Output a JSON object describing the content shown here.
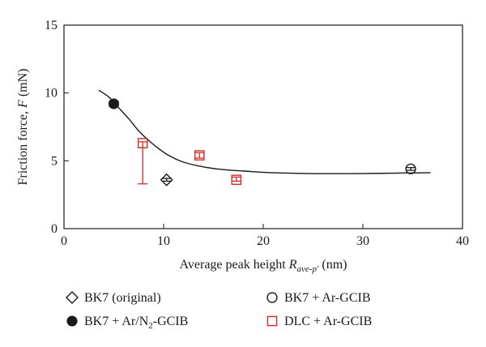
{
  "chart_data": {
    "type": "scatter",
    "xlabel_main": "Average peak height ",
    "xlabel_var": "R",
    "xlabel_sub": "ave-p′",
    "xlabel_unit": "  (nm)",
    "ylabel_main": "Friction force, ",
    "ylabel_var": "F",
    "ylabel_unit": "  (mN)",
    "xlim": [
      0,
      40
    ],
    "ylim": [
      0,
      15
    ],
    "xticks": [
      0,
      10,
      20,
      30,
      40
    ],
    "yticks": [
      0,
      5,
      10,
      15
    ],
    "grid": false,
    "legend_position": "bottom",
    "series": [
      {
        "name": "BK7 (original)",
        "marker": "diamond-open",
        "color": "#1a1a1a",
        "points": [
          {
            "x": 10.3,
            "y": 3.6,
            "err_low": 3.5,
            "err_high": 3.7
          }
        ]
      },
      {
        "name": "BK7 + Ar/N₂-GCIB",
        "marker": "circle-filled",
        "color": "#1a1a1a",
        "points": [
          {
            "x": 5.0,
            "y": 9.2,
            "err_low": 9.0,
            "err_high": 9.4
          }
        ]
      },
      {
        "name": "BK7 + Ar-GCIB",
        "marker": "circle-open",
        "color": "#1a1a1a",
        "points": [
          {
            "x": 34.8,
            "y": 4.4,
            "err_low": 4.3,
            "err_high": 4.5
          }
        ]
      },
      {
        "name": "DLC + Ar-GCIB",
        "marker": "square-open",
        "color": "#d42a2a",
        "points": [
          {
            "x": 7.9,
            "y": 6.3,
            "err_low": 3.3,
            "err_high": 6.4
          },
          {
            "x": 13.6,
            "y": 5.4,
            "err_low": 5.2,
            "err_high": 5.6
          },
          {
            "x": 17.3,
            "y": 3.6,
            "err_low": 3.5,
            "err_high": 3.8
          }
        ]
      }
    ],
    "fit_curve": {
      "x": [
        3.5,
        4.5,
        5.5,
        6.5,
        7.5,
        8.5,
        9.5,
        10.5,
        12,
        14,
        16,
        18,
        20,
        23,
        26,
        30,
        34,
        36.8
      ],
      "y": [
        10.2,
        9.7,
        8.9,
        8.1,
        7.2,
        6.5,
        5.9,
        5.4,
        4.9,
        4.55,
        4.35,
        4.25,
        4.15,
        4.08,
        4.05,
        4.06,
        4.1,
        4.12
      ]
    }
  },
  "legend": [
    {
      "label_main": "BK7 (original)",
      "label_sub": "",
      "label_tail": "",
      "marker": "diamond-open",
      "color": "#1a1a1a"
    },
    {
      "label_main": "BK7 + Ar-GCIB",
      "label_sub": "",
      "label_tail": "",
      "marker": "circle-open",
      "color": "#1a1a1a"
    },
    {
      "label_main": "BK7 + Ar/N",
      "label_sub": "2",
      "label_tail": "-GCIB",
      "marker": "circle-filled",
      "color": "#1a1a1a"
    },
    {
      "label_main": "DLC + Ar-GCIB",
      "label_sub": "",
      "label_tail": "",
      "marker": "square-open",
      "color": "#d42a2a"
    }
  ]
}
